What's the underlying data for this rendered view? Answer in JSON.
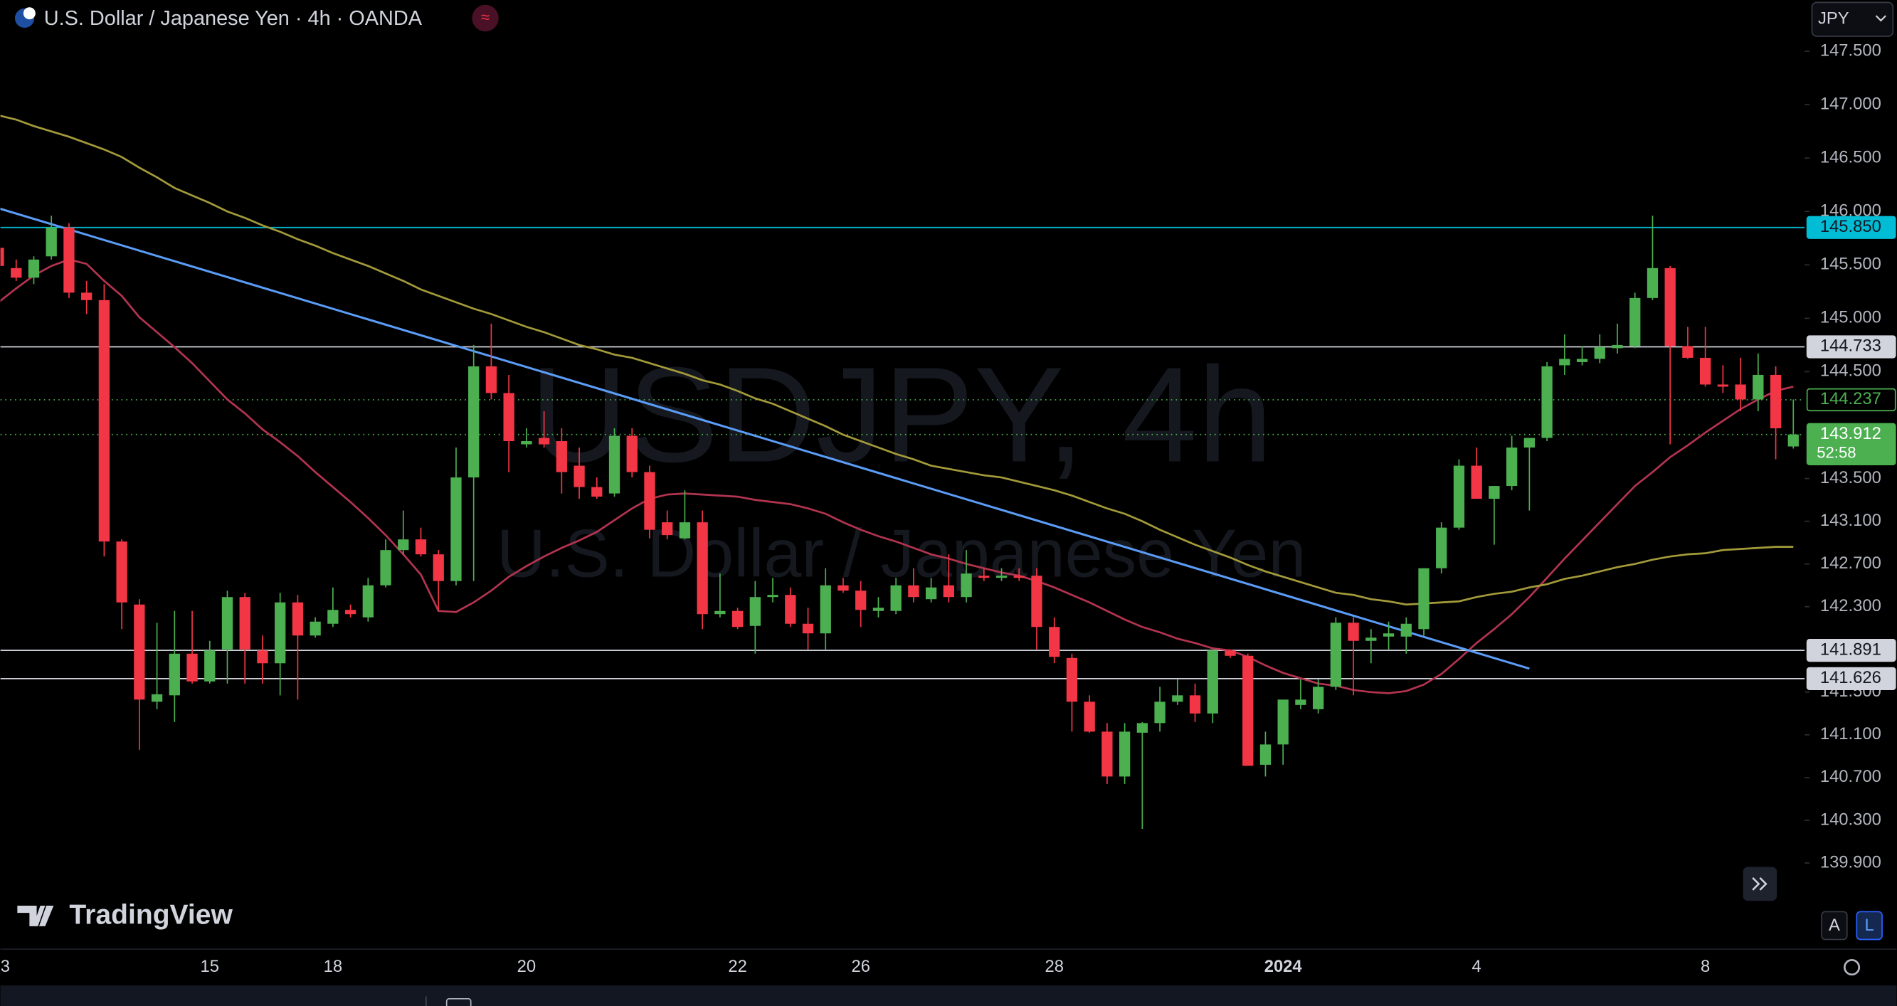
{
  "header": {
    "title": "U.S. Dollar / Japanese Yen · 4h · OANDA",
    "currency": "JPY",
    "brand": "TradingView",
    "scale_buttons": [
      "A",
      "L"
    ]
  },
  "chart_data": {
    "type": "candlestick",
    "watermark": "USDJPY, 4h",
    "watermark_subtitle": "U.S. Dollar / Japanese Yen",
    "up_color": "#4caf50",
    "down_color": "#f23645",
    "grid": false,
    "ylim": [
      139.15,
      147.98
    ],
    "yticks": [
      {
        "value": 147.5,
        "label": "147.500"
      },
      {
        "value": 147.0,
        "label": "147.000"
      },
      {
        "value": 146.5,
        "label": "146.500"
      },
      {
        "value": 146.0,
        "label": "146.000"
      },
      {
        "value": 145.5,
        "label": "145.500"
      },
      {
        "value": 145.0,
        "label": "145.000"
      },
      {
        "value": 144.5,
        "label": "144.500"
      },
      {
        "value": 143.5,
        "label": "143.500"
      },
      {
        "value": 143.1,
        "label": "143.100"
      },
      {
        "value": 142.7,
        "label": "142.700"
      },
      {
        "value": 142.3,
        "label": "142.300"
      },
      {
        "value": 141.5,
        "label": "141.500"
      },
      {
        "value": 141.1,
        "label": "141.100"
      },
      {
        "value": 140.7,
        "label": "140.700"
      },
      {
        "value": 140.3,
        "label": "140.300"
      },
      {
        "value": 139.9,
        "label": "139.900"
      }
    ],
    "categories": [
      "3",
      null,
      null,
      null,
      null,
      null,
      null,
      null,
      null,
      null,
      null,
      null,
      "15",
      null,
      null,
      null,
      null,
      null,
      null,
      "18",
      null,
      null,
      null,
      null,
      null,
      null,
      null,
      null,
      null,
      null,
      "20",
      null,
      null,
      null,
      null,
      null,
      null,
      null,
      null,
      null,
      null,
      null,
      "22",
      null,
      null,
      null,
      null,
      null,
      null,
      "26",
      null,
      null,
      null,
      null,
      null,
      null,
      null,
      null,
      null,
      null,
      "28",
      null,
      null,
      null,
      null,
      null,
      null,
      null,
      null,
      null,
      null,
      null,
      null,
      "2024",
      null,
      null,
      null,
      null,
      null,
      null,
      null,
      null,
      null,
      null,
      "4",
      null,
      null,
      null,
      null,
      null,
      null,
      null,
      null,
      null,
      null,
      null,
      null,
      "8",
      null,
      null,
      null,
      null,
      null
    ],
    "candles": [
      [
        145.66,
        145.72,
        145.43,
        145.49
      ],
      [
        145.47,
        145.55,
        145.35,
        145.38
      ],
      [
        145.38,
        145.58,
        145.32,
        145.55
      ],
      [
        145.58,
        145.96,
        145.55,
        145.85
      ],
      [
        145.85,
        145.89,
        145.19,
        145.24
      ],
      [
        145.24,
        145.35,
        145.04,
        145.17
      ],
      [
        145.17,
        145.32,
        142.77,
        142.91
      ],
      [
        142.91,
        142.93,
        142.09,
        142.34
      ],
      [
        142.32,
        142.37,
        140.96,
        141.43
      ],
      [
        141.41,
        142.15,
        141.34,
        141.48
      ],
      [
        141.47,
        142.26,
        141.22,
        141.86
      ],
      [
        141.86,
        142.26,
        141.58,
        141.6
      ],
      [
        141.6,
        141.98,
        141.58,
        141.89
      ],
      [
        141.9,
        142.45,
        141.58,
        142.39
      ],
      [
        142.39,
        142.43,
        141.58,
        141.9
      ],
      [
        141.89,
        142.03,
        141.58,
        141.77
      ],
      [
        141.77,
        142.43,
        141.47,
        142.34
      ],
      [
        142.34,
        142.41,
        141.43,
        142.03
      ],
      [
        142.03,
        142.2,
        142.01,
        142.16
      ],
      [
        142.14,
        142.48,
        142.11,
        142.27
      ],
      [
        142.27,
        142.32,
        142.2,
        142.23
      ],
      [
        142.2,
        142.57,
        142.16,
        142.5
      ],
      [
        142.5,
        142.93,
        142.48,
        142.83
      ],
      [
        142.83,
        143.2,
        142.79,
        142.93
      ],
      [
        142.93,
        143.04,
        142.77,
        142.79
      ],
      [
        142.79,
        142.83,
        142.26,
        142.54
      ],
      [
        142.54,
        143.79,
        142.5,
        143.51
      ],
      [
        143.51,
        144.75,
        142.54,
        144.55
      ],
      [
        144.55,
        144.95,
        144.24,
        144.3
      ],
      [
        144.3,
        144.47,
        143.56,
        143.85
      ],
      [
        143.82,
        143.97,
        143.79,
        143.85
      ],
      [
        143.88,
        144.13,
        143.79,
        143.82
      ],
      [
        143.85,
        143.97,
        143.36,
        143.56
      ],
      [
        143.62,
        143.79,
        143.31,
        143.42
      ],
      [
        143.42,
        143.51,
        143.31,
        143.33
      ],
      [
        143.36,
        143.97,
        143.33,
        143.9
      ],
      [
        143.9,
        143.97,
        143.51,
        143.56
      ],
      [
        143.56,
        143.62,
        142.94,
        143.02
      ],
      [
        143.09,
        143.2,
        142.93,
        142.97
      ],
      [
        142.94,
        143.39,
        142.93,
        143.09
      ],
      [
        143.09,
        143.2,
        142.09,
        142.23
      ],
      [
        142.23,
        142.61,
        142.2,
        142.26
      ],
      [
        142.26,
        142.29,
        142.09,
        142.11
      ],
      [
        142.12,
        142.54,
        141.86,
        142.39
      ],
      [
        142.39,
        142.57,
        142.34,
        142.41
      ],
      [
        142.41,
        142.48,
        142.11,
        142.14
      ],
      [
        142.14,
        142.29,
        141.9,
        142.05
      ],
      [
        142.05,
        142.66,
        141.9,
        142.5
      ],
      [
        142.5,
        142.57,
        142.43,
        142.45
      ],
      [
        142.45,
        142.54,
        142.11,
        142.27
      ],
      [
        142.26,
        142.39,
        142.2,
        142.29
      ],
      [
        142.26,
        142.57,
        142.23,
        142.5
      ],
      [
        142.5,
        142.66,
        142.34,
        142.39
      ],
      [
        142.37,
        142.57,
        142.34,
        142.48
      ],
      [
        142.5,
        142.79,
        142.34,
        142.39
      ],
      [
        142.39,
        142.83,
        142.34,
        142.61
      ],
      [
        142.59,
        142.66,
        142.54,
        142.57
      ],
      [
        142.57,
        142.66,
        142.54,
        142.59
      ],
      [
        142.59,
        142.66,
        142.54,
        142.57
      ],
      [
        142.59,
        142.66,
        141.9,
        142.11
      ],
      [
        142.11,
        142.2,
        141.77,
        141.83
      ],
      [
        141.82,
        141.86,
        141.13,
        141.41
      ],
      [
        141.41,
        141.47,
        141.12,
        141.13
      ],
      [
        141.13,
        141.21,
        140.64,
        140.71
      ],
      [
        140.71,
        141.21,
        140.64,
        141.13
      ],
      [
        141.12,
        141.22,
        140.22,
        141.21
      ],
      [
        141.21,
        141.55,
        141.13,
        141.41
      ],
      [
        141.41,
        141.62,
        141.38,
        141.47
      ],
      [
        141.47,
        141.58,
        141.22,
        141.3
      ],
      [
        141.3,
        141.9,
        141.21,
        141.89
      ],
      [
        141.89,
        141.9,
        141.82,
        141.84
      ],
      [
        141.84,
        141.86,
        140.81,
        140.81
      ],
      [
        140.82,
        141.13,
        140.71,
        141.01
      ],
      [
        141.01,
        141.43,
        140.82,
        141.43
      ],
      [
        141.38,
        141.62,
        141.34,
        141.43
      ],
      [
        141.34,
        141.62,
        141.3,
        141.55
      ],
      [
        141.55,
        142.2,
        141.52,
        142.15
      ],
      [
        142.15,
        142.2,
        141.47,
        141.98
      ],
      [
        141.98,
        142.09,
        141.77,
        142.01
      ],
      [
        142.02,
        142.16,
        141.9,
        142.05
      ],
      [
        142.02,
        142.2,
        141.86,
        142.14
      ],
      [
        142.09,
        142.66,
        142.03,
        142.66
      ],
      [
        142.66,
        143.09,
        142.61,
        143.04
      ],
      [
        143.04,
        143.68,
        143.02,
        143.62
      ],
      [
        143.62,
        143.79,
        143.31,
        143.31
      ],
      [
        143.31,
        143.43,
        142.88,
        143.43
      ],
      [
        143.43,
        143.9,
        143.39,
        143.79
      ],
      [
        143.79,
        143.88,
        143.2,
        143.88
      ],
      [
        143.88,
        144.59,
        143.85,
        144.55
      ],
      [
        144.56,
        144.85,
        144.47,
        144.62
      ],
      [
        144.59,
        144.74,
        144.56,
        144.62
      ],
      [
        144.62,
        144.85,
        144.58,
        144.73
      ],
      [
        144.72,
        144.95,
        144.67,
        144.75
      ],
      [
        144.74,
        145.24,
        144.72,
        145.19
      ],
      [
        145.19,
        145.96,
        145.17,
        145.47
      ],
      [
        145.47,
        145.49,
        143.82,
        144.74
      ],
      [
        144.74,
        144.92,
        144.62,
        144.63
      ],
      [
        144.63,
        144.92,
        144.36,
        144.38
      ],
      [
        144.38,
        144.56,
        144.3,
        144.36
      ],
      [
        144.38,
        144.63,
        144.13,
        144.24
      ],
      [
        144.24,
        144.67,
        144.13,
        144.47
      ],
      [
        144.47,
        144.55,
        143.68,
        143.97
      ],
      [
        143.8,
        144.24,
        143.78,
        143.912
      ]
    ],
    "overlays": [
      {
        "color": "#b2344f",
        "values": [
          145.15,
          145.28,
          145.4,
          145.49,
          145.55,
          145.51,
          145.35,
          145.21,
          145.01,
          144.87,
          144.73,
          144.58,
          144.41,
          144.24,
          144.11,
          143.96,
          143.84,
          143.71,
          143.56,
          143.42,
          143.28,
          143.13,
          142.97,
          142.79,
          142.6,
          142.26,
          142.25,
          142.34,
          142.45,
          142.58,
          142.68,
          142.77,
          142.85,
          142.92,
          143.0,
          143.11,
          143.22,
          143.31,
          143.35,
          143.36,
          143.35,
          143.34,
          143.33,
          143.3,
          143.28,
          143.26,
          143.22,
          143.17,
          143.09,
          143.02,
          142.96,
          142.91,
          142.85,
          142.79,
          142.75,
          142.7,
          142.66,
          142.62,
          142.59,
          142.54,
          142.48,
          142.41,
          142.34,
          142.26,
          142.18,
          142.11,
          142.06,
          142.0,
          141.96,
          141.91,
          141.89,
          141.83,
          141.75,
          141.68,
          141.63,
          141.58,
          141.56,
          141.52,
          141.5,
          141.49,
          141.51,
          141.57,
          141.67,
          141.81,
          141.96,
          142.09,
          142.23,
          142.39,
          142.57,
          142.75,
          142.92,
          143.09,
          143.26,
          143.43,
          143.56,
          143.7,
          143.81,
          143.93,
          144.04,
          144.15,
          144.24,
          144.32,
          144.36
        ]
      },
      {
        "color": "#a39a3a",
        "values": [
          146.9,
          146.86,
          146.8,
          146.75,
          146.7,
          146.64,
          146.58,
          146.51,
          146.41,
          146.32,
          146.22,
          146.15,
          146.08,
          146.0,
          145.94,
          145.87,
          145.81,
          145.74,
          145.68,
          145.61,
          145.55,
          145.49,
          145.42,
          145.35,
          145.27,
          145.21,
          145.15,
          145.09,
          145.04,
          144.98,
          144.92,
          144.87,
          144.81,
          144.75,
          144.71,
          144.66,
          144.63,
          144.58,
          144.53,
          144.48,
          144.42,
          144.38,
          144.32,
          144.25,
          144.2,
          144.13,
          144.06,
          143.99,
          143.91,
          143.85,
          143.79,
          143.73,
          143.68,
          143.62,
          143.59,
          143.56,
          143.53,
          143.51,
          143.47,
          143.43,
          143.39,
          143.34,
          143.28,
          143.22,
          143.17,
          143.1,
          143.02,
          142.95,
          142.88,
          142.82,
          142.76,
          142.69,
          142.63,
          142.58,
          142.53,
          142.48,
          142.43,
          142.41,
          142.37,
          142.35,
          142.32,
          142.33,
          142.34,
          142.35,
          142.39,
          142.42,
          142.44,
          142.48,
          142.51,
          142.56,
          142.59,
          142.63,
          142.67,
          142.7,
          142.74,
          142.77,
          142.79,
          142.8,
          142.83,
          142.84,
          142.85,
          142.86,
          142.86
        ]
      }
    ],
    "trendline": {
      "color": "#5b9cf6",
      "x": [
        0,
        87
      ],
      "values": [
        146.03,
        141.72
      ]
    },
    "levels": [
      {
        "value": 145.85,
        "label": "145.850",
        "color": "#00bcd4",
        "text_color": "#131722",
        "dotted": false,
        "outline": false
      },
      {
        "value": 144.733,
        "label": "144.733",
        "color": "#d1d4dc",
        "text_color": "#131722",
        "dotted": false,
        "outline": false
      },
      {
        "value": 144.237,
        "label": "144.237",
        "color": "#4caf50",
        "text_color": "#4caf50",
        "dotted": true,
        "outline": true
      },
      {
        "value": 143.912,
        "label": "143.912",
        "color": "#4caf50",
        "text_color": "#ffffff",
        "dotted": true,
        "outline": false,
        "countdown": "52:58"
      },
      {
        "value": 141.891,
        "label": "141.891",
        "color": "#d1d4dc",
        "text_color": "#131722",
        "dotted": false,
        "outline": false
      },
      {
        "value": 141.626,
        "label": "141.626",
        "color": "#d1d4dc",
        "text_color": "#131722",
        "dotted": false,
        "outline": false
      }
    ]
  }
}
